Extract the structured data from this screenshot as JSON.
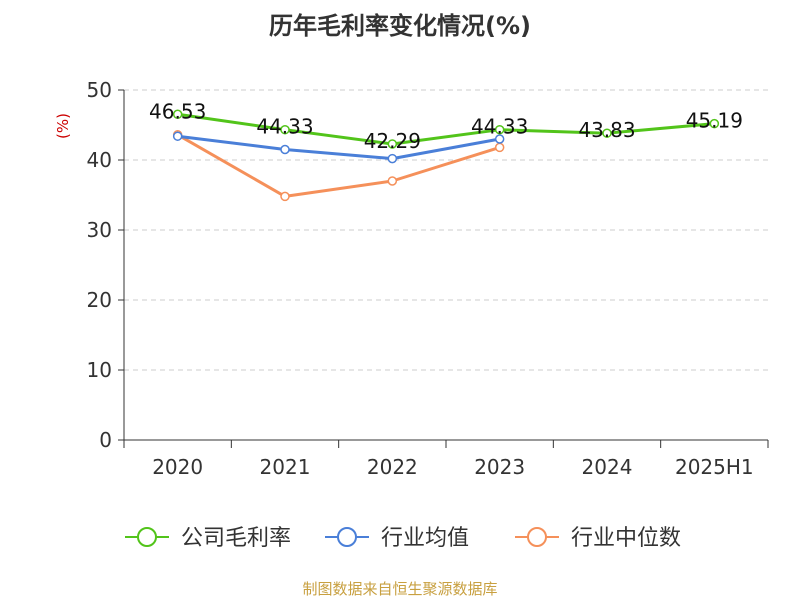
{
  "chart_data": {
    "type": "line",
    "title": "历年毛利率变化情况(%)",
    "ylabel": "(%)",
    "xlabel": "",
    "categories": [
      "2020",
      "2021",
      "2022",
      "2023",
      "2024",
      "2025H1"
    ],
    "ylim": [
      0,
      50
    ],
    "yticks": [
      0,
      10,
      20,
      30,
      40,
      50
    ],
    "grid": true,
    "legend_position": "bottom",
    "series": [
      {
        "name": "公司毛利率",
        "color": "#52c41a",
        "values": [
          46.53,
          44.33,
          42.29,
          44.33,
          43.83,
          45.19
        ],
        "labels": [
          "46.53",
          "44.33",
          "42.29",
          "44.33",
          "43.83",
          "45.19"
        ]
      },
      {
        "name": "行业均值",
        "color": "#4a7fd8",
        "values": [
          43.4,
          41.5,
          40.2,
          43.0,
          null,
          null
        ]
      },
      {
        "name": "行业中位数",
        "color": "#f5905a",
        "values": [
          43.6,
          34.8,
          37.0,
          41.8,
          null,
          null
        ]
      }
    ]
  },
  "colors": {
    "unit_label": "#cc0000",
    "footer": "#c8a040",
    "axis": "#333333",
    "grid": "#cccccc"
  },
  "footer": {
    "source": "制图数据来自恒生聚源数据库"
  }
}
